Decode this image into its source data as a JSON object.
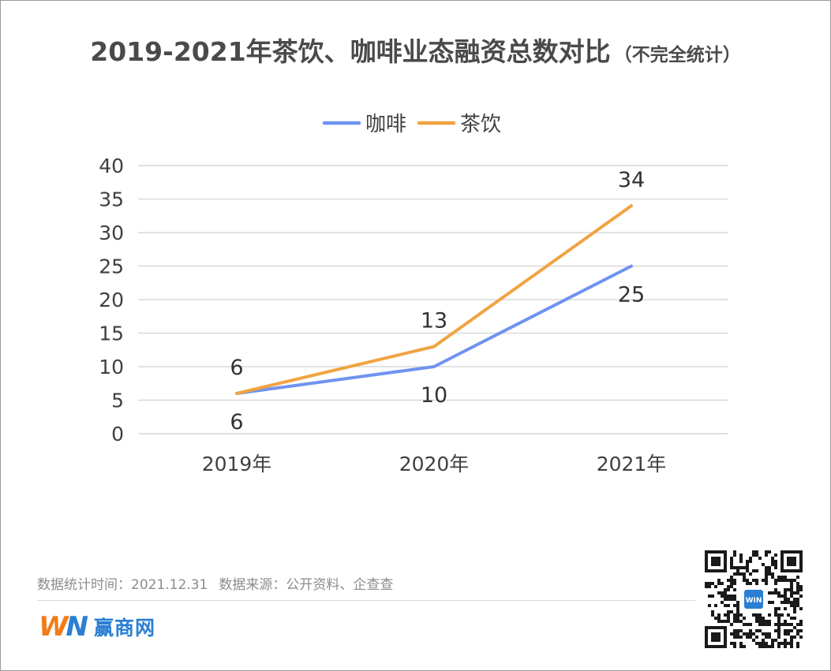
{
  "title": "2019-2021年茶饮、咖啡业态融资总数对比",
  "subtitle": "（不完全统计）",
  "chart_data": {
    "type": "line",
    "categories": [
      "2019年",
      "2020年",
      "2021年"
    ],
    "series": [
      {
        "name": "咖啡",
        "color": "#6f93f0",
        "values": [
          6,
          10,
          25
        ],
        "labels": [
          "6",
          "10",
          "25"
        ],
        "label_pos": "below"
      },
      {
        "name": "茶饮",
        "color": "#f0a442",
        "values": [
          6,
          13,
          34
        ],
        "labels": [
          "6",
          "13",
          "34"
        ],
        "label_pos": "above"
      }
    ],
    "ylim": [
      0,
      40
    ],
    "yticks": [
      "0",
      "5",
      "10",
      "15",
      "20",
      "25",
      "30",
      "35",
      "40"
    ],
    "grid": true,
    "legend": "top-center"
  },
  "footer": {
    "stat_date": "数据统计时间：2021.12.31",
    "source": "数据来源：公开资料、企查查"
  },
  "brand": {
    "mark_w": "W",
    "mark_n": "N",
    "name": "赢商网",
    "qr_center_text": "WIN"
  }
}
